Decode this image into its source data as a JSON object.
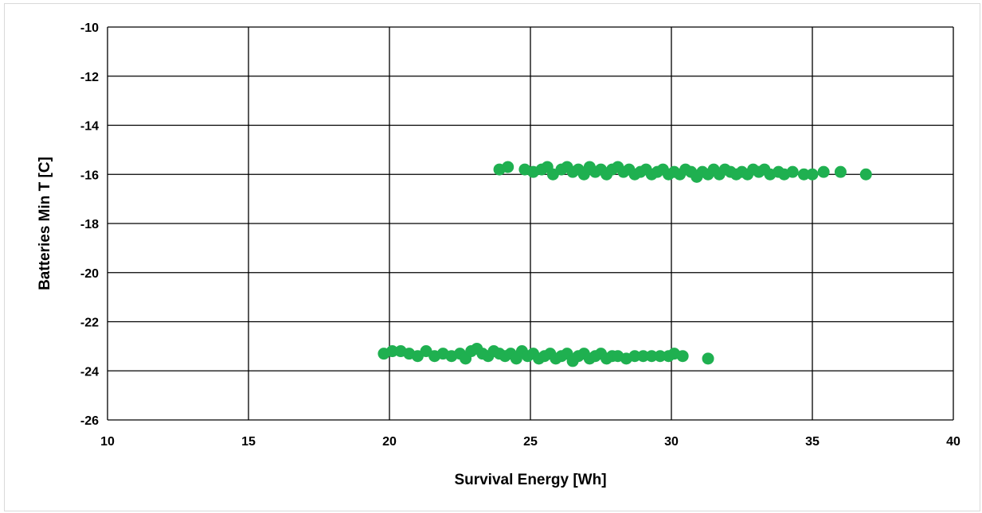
{
  "chart_data": {
    "type": "scatter",
    "title": "",
    "xlabel": "Survival Energy [Wh]",
    "ylabel": "Batteries Min T [C]",
    "xlim": [
      10,
      40
    ],
    "ylim": [
      -26,
      -10
    ],
    "x_ticks": [
      10,
      15,
      20,
      25,
      30,
      35,
      40
    ],
    "y_ticks": [
      -10,
      -12,
      -14,
      -16,
      -18,
      -20,
      -22,
      -24,
      -26
    ],
    "grid": true,
    "legend": "none",
    "marker_color": "#1fb050",
    "series": [
      {
        "points": [
          [
            23.9,
            -15.8
          ],
          [
            24.2,
            -15.7
          ],
          [
            24.8,
            -15.8
          ],
          [
            25.1,
            -15.9
          ],
          [
            25.4,
            -15.8
          ],
          [
            25.6,
            -15.7
          ],
          [
            25.8,
            -16.0
          ],
          [
            26.1,
            -15.8
          ],
          [
            26.3,
            -15.7
          ],
          [
            26.5,
            -15.9
          ],
          [
            26.7,
            -15.8
          ],
          [
            26.9,
            -16.0
          ],
          [
            27.1,
            -15.7
          ],
          [
            27.3,
            -15.9
          ],
          [
            27.5,
            -15.8
          ],
          [
            27.7,
            -16.0
          ],
          [
            27.9,
            -15.8
          ],
          [
            28.1,
            -15.7
          ],
          [
            28.3,
            -15.9
          ],
          [
            28.5,
            -15.8
          ],
          [
            28.7,
            -16.0
          ],
          [
            28.9,
            -15.9
          ],
          [
            29.1,
            -15.8
          ],
          [
            29.3,
            -16.0
          ],
          [
            29.5,
            -15.9
          ],
          [
            29.7,
            -15.8
          ],
          [
            29.9,
            -16.0
          ],
          [
            30.1,
            -15.9
          ],
          [
            30.3,
            -16.0
          ],
          [
            30.5,
            -15.8
          ],
          [
            30.7,
            -15.9
          ],
          [
            30.9,
            -16.1
          ],
          [
            31.1,
            -15.9
          ],
          [
            31.3,
            -16.0
          ],
          [
            31.5,
            -15.8
          ],
          [
            31.7,
            -16.0
          ],
          [
            31.9,
            -15.8
          ],
          [
            32.1,
            -15.9
          ],
          [
            32.3,
            -16.0
          ],
          [
            32.5,
            -15.9
          ],
          [
            32.7,
            -16.0
          ],
          [
            32.9,
            -15.8
          ],
          [
            33.1,
            -15.9
          ],
          [
            33.3,
            -15.8
          ],
          [
            33.5,
            -16.0
          ],
          [
            33.8,
            -15.9
          ],
          [
            34.0,
            -16.0
          ],
          [
            34.3,
            -15.9
          ],
          [
            34.7,
            -16.0
          ],
          [
            35.0,
            -16.0
          ],
          [
            35.4,
            -15.9
          ],
          [
            36.0,
            -15.9
          ],
          [
            36.9,
            -16.0
          ],
          [
            19.8,
            -23.3
          ],
          [
            20.1,
            -23.2
          ],
          [
            20.4,
            -23.2
          ],
          [
            20.7,
            -23.3
          ],
          [
            21.0,
            -23.4
          ],
          [
            21.3,
            -23.2
          ],
          [
            21.6,
            -23.4
          ],
          [
            21.9,
            -23.3
          ],
          [
            22.2,
            -23.4
          ],
          [
            22.5,
            -23.3
          ],
          [
            22.7,
            -23.5
          ],
          [
            22.9,
            -23.2
          ],
          [
            23.1,
            -23.1
          ],
          [
            23.3,
            -23.3
          ],
          [
            23.5,
            -23.4
          ],
          [
            23.7,
            -23.2
          ],
          [
            23.9,
            -23.3
          ],
          [
            24.1,
            -23.4
          ],
          [
            24.3,
            -23.3
          ],
          [
            24.5,
            -23.5
          ],
          [
            24.7,
            -23.2
          ],
          [
            24.9,
            -23.4
          ],
          [
            25.1,
            -23.3
          ],
          [
            25.3,
            -23.5
          ],
          [
            25.5,
            -23.4
          ],
          [
            25.7,
            -23.3
          ],
          [
            25.9,
            -23.5
          ],
          [
            26.1,
            -23.4
          ],
          [
            26.3,
            -23.3
          ],
          [
            26.5,
            -23.6
          ],
          [
            26.7,
            -23.4
          ],
          [
            26.9,
            -23.3
          ],
          [
            27.1,
            -23.5
          ],
          [
            27.3,
            -23.4
          ],
          [
            27.5,
            -23.3
          ],
          [
            27.7,
            -23.5
          ],
          [
            27.9,
            -23.4
          ],
          [
            28.1,
            -23.4
          ],
          [
            28.4,
            -23.5
          ],
          [
            28.7,
            -23.4
          ],
          [
            29.0,
            -23.4
          ],
          [
            29.3,
            -23.4
          ],
          [
            29.6,
            -23.4
          ],
          [
            29.9,
            -23.4
          ],
          [
            30.1,
            -23.3
          ],
          [
            30.4,
            -23.4
          ],
          [
            31.3,
            -23.5
          ]
        ]
      }
    ]
  }
}
